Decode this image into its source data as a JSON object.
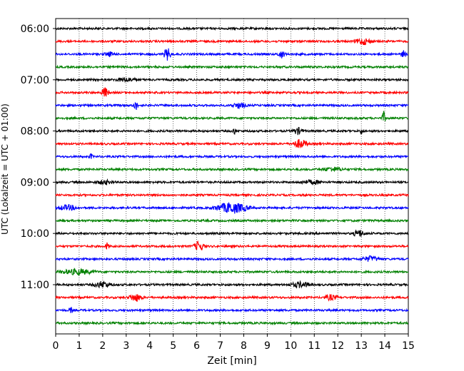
{
  "chart_data": {
    "type": "line",
    "xlabel": "Zeit  [min]",
    "ylabel": "UTC (Lokalzeit = UTC + 01:00)",
    "xlim": [
      0,
      15
    ],
    "x_ticks": [
      0,
      1,
      2,
      3,
      4,
      5,
      6,
      7,
      8,
      9,
      10,
      11,
      12,
      13,
      14,
      15
    ],
    "y_ticks": [
      "06:00",
      "07:00",
      "08:00",
      "09:00",
      "10:00",
      "11:00"
    ],
    "grid": "vertical-dotted",
    "trace_interval_minutes": 15,
    "trace_colors": [
      "#000000",
      "#ff0000",
      "#0000ff",
      "#008000"
    ],
    "traces": [
      {
        "start": "06:00",
        "color": "#000000",
        "events": []
      },
      {
        "start": "06:15",
        "color": "#ff0000",
        "events": [
          {
            "t": 13.1,
            "amp": 0.5,
            "dur": 0.5
          }
        ]
      },
      {
        "start": "06:30",
        "color": "#0000ff",
        "events": [
          {
            "t": 2.3,
            "amp": 0.3,
            "dur": 0.3
          },
          {
            "t": 4.75,
            "amp": 1.0,
            "dur": 0.2
          },
          {
            "t": 9.6,
            "amp": 0.6,
            "dur": 0.2
          },
          {
            "t": 14.8,
            "amp": 0.5,
            "dur": 0.15
          }
        ]
      },
      {
        "start": "06:45",
        "color": "#008000",
        "events": []
      },
      {
        "start": "07:00",
        "color": "#000000",
        "events": [
          {
            "t": 3.0,
            "amp": 0.3,
            "dur": 0.6
          }
        ]
      },
      {
        "start": "07:15",
        "color": "#ff0000",
        "events": [
          {
            "t": 2.1,
            "amp": 0.8,
            "dur": 0.2
          }
        ]
      },
      {
        "start": "07:30",
        "color": "#0000ff",
        "events": [
          {
            "t": 3.4,
            "amp": 0.7,
            "dur": 0.15
          },
          {
            "t": 7.8,
            "amp": 0.4,
            "dur": 0.4
          }
        ]
      },
      {
        "start": "07:45",
        "color": "#008000",
        "events": [
          {
            "t": 13.95,
            "amp": 1.0,
            "dur": 0.1
          }
        ]
      },
      {
        "start": "08:00",
        "color": "#000000",
        "events": [
          {
            "t": 7.6,
            "amp": 0.5,
            "dur": 0.1
          },
          {
            "t": 10.3,
            "amp": 0.5,
            "dur": 0.3
          },
          {
            "t": 13.0,
            "amp": 0.5,
            "dur": 0.1
          }
        ]
      },
      {
        "start": "08:15",
        "color": "#ff0000",
        "events": [
          {
            "t": 10.4,
            "amp": 0.7,
            "dur": 0.4
          }
        ]
      },
      {
        "start": "08:30",
        "color": "#0000ff",
        "events": [
          {
            "t": 1.5,
            "amp": 0.4,
            "dur": 0.1
          }
        ]
      },
      {
        "start": "08:45",
        "color": "#008000",
        "events": [
          {
            "t": 11.8,
            "amp": 0.3,
            "dur": 0.6
          }
        ]
      },
      {
        "start": "09:00",
        "color": "#000000",
        "events": [
          {
            "t": 2.1,
            "amp": 0.3,
            "dur": 0.5
          },
          {
            "t": 10.9,
            "amp": 0.3,
            "dur": 0.6
          }
        ]
      },
      {
        "start": "09:15",
        "color": "#ff0000",
        "events": []
      },
      {
        "start": "09:30",
        "color": "#0000ff",
        "events": [
          {
            "t": 0.5,
            "amp": 0.4,
            "dur": 0.6
          },
          {
            "t": 7.5,
            "amp": 0.85,
            "dur": 1.0
          }
        ]
      },
      {
        "start": "09:45",
        "color": "#008000",
        "events": []
      },
      {
        "start": "10:00",
        "color": "#000000",
        "events": [
          {
            "t": 12.9,
            "amp": 0.6,
            "dur": 0.3
          }
        ]
      },
      {
        "start": "10:15",
        "color": "#ff0000",
        "events": [
          {
            "t": 2.2,
            "amp": 0.6,
            "dur": 0.1
          },
          {
            "t": 6.1,
            "amp": 0.8,
            "dur": 0.3
          }
        ]
      },
      {
        "start": "10:30",
        "color": "#0000ff",
        "events": [
          {
            "t": 13.4,
            "amp": 0.4,
            "dur": 0.5
          }
        ]
      },
      {
        "start": "10:45",
        "color": "#008000",
        "events": [
          {
            "t": 0.9,
            "amp": 0.4,
            "dur": 1.0
          }
        ]
      },
      {
        "start": "11:00",
        "color": "#000000",
        "events": [
          {
            "t": 2.0,
            "amp": 0.5,
            "dur": 0.5
          },
          {
            "t": 10.4,
            "amp": 0.4,
            "dur": 0.6
          }
        ]
      },
      {
        "start": "11:15",
        "color": "#ff0000",
        "events": [
          {
            "t": 3.4,
            "amp": 0.6,
            "dur": 0.4
          },
          {
            "t": 11.7,
            "amp": 0.4,
            "dur": 0.4
          }
        ]
      },
      {
        "start": "11:30",
        "color": "#0000ff",
        "events": [
          {
            "t": 0.65,
            "amp": 0.5,
            "dur": 0.1
          }
        ]
      },
      {
        "start": "11:45",
        "color": "#008000",
        "events": []
      }
    ]
  }
}
